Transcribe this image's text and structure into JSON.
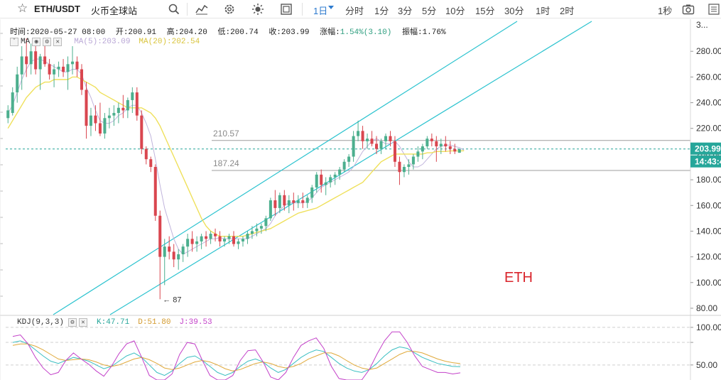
{
  "header": {
    "star_icon": "star-icon",
    "symbol": "ETH/USDT",
    "exchange": "火币全球站",
    "icons": [
      "search-icon",
      "indicator-icon",
      "settings-icon",
      "theme-icon",
      "fullscreen-icon"
    ],
    "intervals": [
      "1日",
      "分时",
      "1分",
      "3分",
      "5分",
      "10分",
      "15分",
      "30分",
      "1时",
      "2时"
    ],
    "active_interval": "1日",
    "right_label": "1秒",
    "camera_icon": "camera-icon"
  },
  "legend": {
    "time": "时间:2020-05-27 08:00",
    "open": "开:200.91",
    "high": "高:204.20",
    "low": "低:200.74",
    "close": "收:203.99",
    "change_label": "涨幅:",
    "change_value": "1.54%(3.10)",
    "amplitude": "振幅:1.76%",
    "ma_prefix": "MA",
    "ma5": "MA(5):203.09",
    "ma20": "MA(20):202.54"
  },
  "kdj": {
    "label": "KDJ(9,3,3)",
    "k": "K:47.71",
    "d": "D:51.80",
    "j": "J:39.53"
  },
  "annotation": "ETH",
  "colors": {
    "up": "#4caf8e",
    "down": "#d9464f",
    "channel": "#2cc3cf",
    "ma5": "#c0b4dc",
    "ma20": "#efe05a",
    "k": "#3bbfc2",
    "d": "#e0a93a",
    "j": "#c341c9",
    "price_label": "#26a69a"
  },
  "chart_data": [
    {
      "type": "candlestick",
      "title": "ETH/USDT",
      "ylim": [
        75,
        305
      ],
      "y_ticks": [
        80,
        100,
        120,
        140,
        160,
        180,
        200,
        220,
        240,
        260,
        280
      ],
      "y_tick_labels": [
        "80.00",
        "100.00",
        "120.00",
        "140.00",
        "160.00",
        "180.00",
        "200.00",
        "220.00",
        "240.00",
        "260.00",
        "280.00"
      ],
      "top_tick_label": "3...",
      "last_price": 203.99,
      "last_price_label": "203.99",
      "countdown_label": "14:43:4",
      "horizontal_levels": [
        {
          "value": 210.57,
          "label": "210.57"
        },
        {
          "value": 187.24,
          "label": "187.24"
        }
      ],
      "min_marker": {
        "value": 87,
        "label": "← 87"
      },
      "candles": [
        [
          228,
          238,
          224,
          234
        ],
        [
          232,
          252,
          230,
          248
        ],
        [
          248,
          268,
          240,
          262
        ],
        [
          262,
          284,
          250,
          276
        ],
        [
          276,
          290,
          260,
          270
        ],
        [
          270,
          286,
          262,
          280
        ],
        [
          280,
          288,
          262,
          266
        ],
        [
          266,
          278,
          250,
          276
        ],
        [
          276,
          286,
          268,
          270
        ],
        [
          270,
          274,
          258,
          262
        ],
        [
          262,
          270,
          252,
          266
        ],
        [
          266,
          272,
          260,
          268
        ],
        [
          268,
          274,
          260,
          264
        ],
        [
          264,
          276,
          250,
          270
        ],
        [
          270,
          284,
          262,
          272
        ],
        [
          272,
          276,
          260,
          266
        ],
        [
          266,
          270,
          246,
          250
        ],
        [
          250,
          256,
          212,
          222
        ],
        [
          222,
          236,
          214,
          230
        ],
        [
          230,
          238,
          218,
          224
        ],
        [
          224,
          240,
          214,
          216
        ],
        [
          216,
          232,
          212,
          228
        ],
        [
          228,
          236,
          220,
          230
        ],
        [
          230,
          238,
          222,
          232
        ],
        [
          232,
          240,
          224,
          236
        ],
        [
          236,
          246,
          228,
          234
        ],
        [
          234,
          244,
          228,
          242
        ],
        [
          242,
          252,
          232,
          248
        ],
        [
          248,
          252,
          226,
          230
        ],
        [
          230,
          234,
          200,
          204
        ],
        [
          204,
          206,
          192,
          196
        ],
        [
          196,
          198,
          186,
          190
        ],
        [
          190,
          192,
          148,
          152
        ],
        [
          152,
          156,
          87,
          120
        ],
        [
          120,
          134,
          98,
          128
        ],
        [
          128,
          136,
          118,
          124
        ],
        [
          124,
          130,
          112,
          118
        ],
        [
          118,
          126,
          110,
          122
        ],
        [
          122,
          130,
          116,
          128
        ],
        [
          128,
          138,
          120,
          134
        ],
        [
          134,
          140,
          124,
          130
        ],
        [
          130,
          136,
          124,
          132
        ],
        [
          132,
          138,
          126,
          136
        ],
        [
          136,
          140,
          128,
          134
        ],
        [
          134,
          140,
          130,
          138
        ],
        [
          138,
          142,
          132,
          136
        ],
        [
          136,
          140,
          128,
          132
        ],
        [
          132,
          136,
          128,
          134
        ],
        [
          134,
          138,
          130,
          136
        ],
        [
          136,
          140,
          128,
          130
        ],
        [
          130,
          134,
          126,
          132
        ],
        [
          132,
          136,
          128,
          134
        ],
        [
          134,
          140,
          130,
          138
        ],
        [
          138,
          144,
          134,
          140
        ],
        [
          140,
          146,
          136,
          142
        ],
        [
          142,
          146,
          138,
          144
        ],
        [
          144,
          152,
          140,
          150
        ],
        [
          150,
          166,
          148,
          164
        ],
        [
          164,
          172,
          152,
          158
        ],
        [
          158,
          170,
          154,
          168
        ],
        [
          168,
          172,
          156,
          160
        ],
        [
          160,
          168,
          154,
          164
        ],
        [
          164,
          170,
          156,
          162
        ],
        [
          162,
          168,
          158,
          164
        ],
        [
          164,
          170,
          158,
          162
        ],
        [
          162,
          168,
          158,
          166
        ],
        [
          166,
          176,
          162,
          174
        ],
        [
          174,
          186,
          170,
          184
        ],
        [
          184,
          188,
          170,
          176
        ],
        [
          176,
          182,
          168,
          178
        ],
        [
          178,
          184,
          174,
          182
        ],
        [
          182,
          186,
          176,
          184
        ],
        [
          184,
          190,
          180,
          188
        ],
        [
          188,
          196,
          186,
          194
        ],
        [
          194,
          200,
          190,
          198
        ],
        [
          198,
          218,
          194,
          214
        ],
        [
          214,
          226,
          210,
          218
        ],
        [
          218,
          222,
          204,
          210
        ],
        [
          210,
          216,
          204,
          212
        ],
        [
          212,
          218,
          206,
          208
        ],
        [
          208,
          214,
          200,
          204
        ],
        [
          204,
          212,
          200,
          210
        ],
        [
          210,
          216,
          204,
          214
        ],
        [
          214,
          218,
          206,
          210
        ],
        [
          210,
          214,
          190,
          194
        ],
        [
          194,
          198,
          176,
          186
        ],
        [
          186,
          192,
          182,
          190
        ],
        [
          190,
          196,
          184,
          192
        ],
        [
          192,
          200,
          188,
          198
        ],
        [
          198,
          206,
          194,
          202
        ],
        [
          202,
          208,
          196,
          206
        ],
        [
          206,
          214,
          204,
          212
        ],
        [
          212,
          216,
          206,
          210
        ],
        [
          210,
          214,
          194,
          206
        ],
        [
          206,
          212,
          200,
          208
        ],
        [
          208,
          214,
          202,
          206
        ],
        [
          206,
          210,
          200,
          204
        ],
        [
          204,
          208,
          200,
          202
        ],
        [
          201,
          204,
          201,
          204
        ]
      ],
      "ma5_series": [
        232,
        238,
        248,
        258,
        266,
        272,
        274,
        274,
        272,
        270,
        268,
        266,
        264,
        264,
        266,
        266,
        262,
        252,
        244,
        234,
        226,
        224,
        224,
        226,
        230,
        232,
        236,
        238,
        238,
        232,
        224,
        214,
        196,
        176,
        158,
        146,
        134,
        126,
        122,
        124,
        126,
        128,
        130,
        132,
        134,
        134,
        135,
        134,
        134,
        134,
        134,
        134,
        134,
        136,
        138,
        140,
        142,
        146,
        152,
        156,
        160,
        162,
        162,
        162,
        162,
        163,
        166,
        170,
        174,
        176,
        178,
        180,
        182,
        184,
        186,
        190,
        196,
        202,
        206,
        210,
        212,
        210,
        208,
        208,
        210,
        206,
        200,
        194,
        190,
        190,
        192,
        196,
        200,
        204,
        206,
        207,
        207,
        206,
        205,
        203.09
      ],
      "ma20_series": [
        220,
        226,
        232,
        238,
        244,
        248,
        252,
        254,
        256,
        256,
        258,
        258,
        258,
        258,
        260,
        260,
        258,
        256,
        254,
        252,
        248,
        246,
        244,
        242,
        240,
        238,
        236,
        236,
        236,
        236,
        234,
        232,
        228,
        222,
        214,
        206,
        198,
        190,
        182,
        174,
        166,
        158,
        150,
        144,
        140,
        138,
        136,
        136,
        136,
        136,
        136,
        136,
        137,
        138,
        139,
        140,
        141,
        142,
        144,
        146,
        148,
        150,
        152,
        154,
        155,
        156,
        157,
        158,
        160,
        162,
        164,
        166,
        168,
        170,
        172,
        174,
        176,
        178,
        182,
        186,
        190,
        194,
        196,
        198,
        200,
        200,
        200,
        200,
        200,
        200,
        200,
        201,
        201,
        202,
        202,
        202,
        202.5,
        202.5,
        202.5,
        202.54
      ],
      "channel_lines": [
        {
          "name": "",
          "from": [
            8,
            86
          ],
          "to": [
            230,
            402
          ]
        },
        {
          "name": "",
          "from": [
            20,
            76
          ],
          "to": [
            250,
            402
          ]
        },
        {
          "name": "",
          "from": [
            46,
            134
          ],
          "to": [
            150,
            220
          ]
        }
      ]
    },
    {
      "type": "line",
      "title": "KDJ(9,3,3)",
      "ylim": [
        30,
        115
      ],
      "y_ticks": [
        50,
        80,
        100
      ],
      "y_tick_labels": [
        "50.00",
        "",
        "100.00"
      ],
      "series": [
        {
          "name": "K",
          "values": [
            80,
            82,
            78,
            70,
            62,
            55,
            52,
            56,
            60,
            58,
            55,
            50,
            45,
            48,
            55,
            62,
            66,
            60,
            50,
            40,
            36,
            42,
            52,
            60,
            62,
            56,
            48,
            40,
            36,
            40,
            48,
            55,
            58,
            54,
            46,
            40,
            44,
            52,
            60,
            66,
            70,
            68,
            60,
            52,
            46,
            42,
            40,
            44,
            52,
            62,
            70,
            74,
            72,
            66,
            60,
            56,
            52,
            50,
            48,
            47.71
          ]
        },
        {
          "name": "D",
          "values": [
            76,
            78,
            78,
            75,
            70,
            64,
            58,
            56,
            57,
            58,
            57,
            54,
            50,
            48,
            50,
            54,
            58,
            60,
            57,
            52,
            46,
            44,
            46,
            50,
            54,
            56,
            54,
            50,
            45,
            42,
            44,
            48,
            52,
            54,
            52,
            48,
            46,
            48,
            52,
            58,
            62,
            66,
            66,
            62,
            56,
            50,
            46,
            44,
            46,
            52,
            58,
            64,
            68,
            68,
            66,
            62,
            58,
            55,
            53,
            51.8
          ]
        },
        {
          "name": "J",
          "values": [
            88,
            90,
            78,
            60,
            46,
            37,
            40,
            56,
            66,
            58,
            51,
            42,
            35,
            48,
            65,
            78,
            82,
            60,
            36,
            16,
            16,
            38,
            64,
            80,
            78,
            56,
            36,
            20,
            18,
            36,
            56,
            69,
            70,
            54,
            34,
            24,
            40,
            60,
            76,
            82,
            86,
            72,
            48,
            32,
            26,
            26,
            28,
            44,
            64,
            82,
            94,
            94,
            80,
            62,
            48,
            44,
            40,
            40,
            38,
            39.53
          ]
        }
      ]
    }
  ]
}
